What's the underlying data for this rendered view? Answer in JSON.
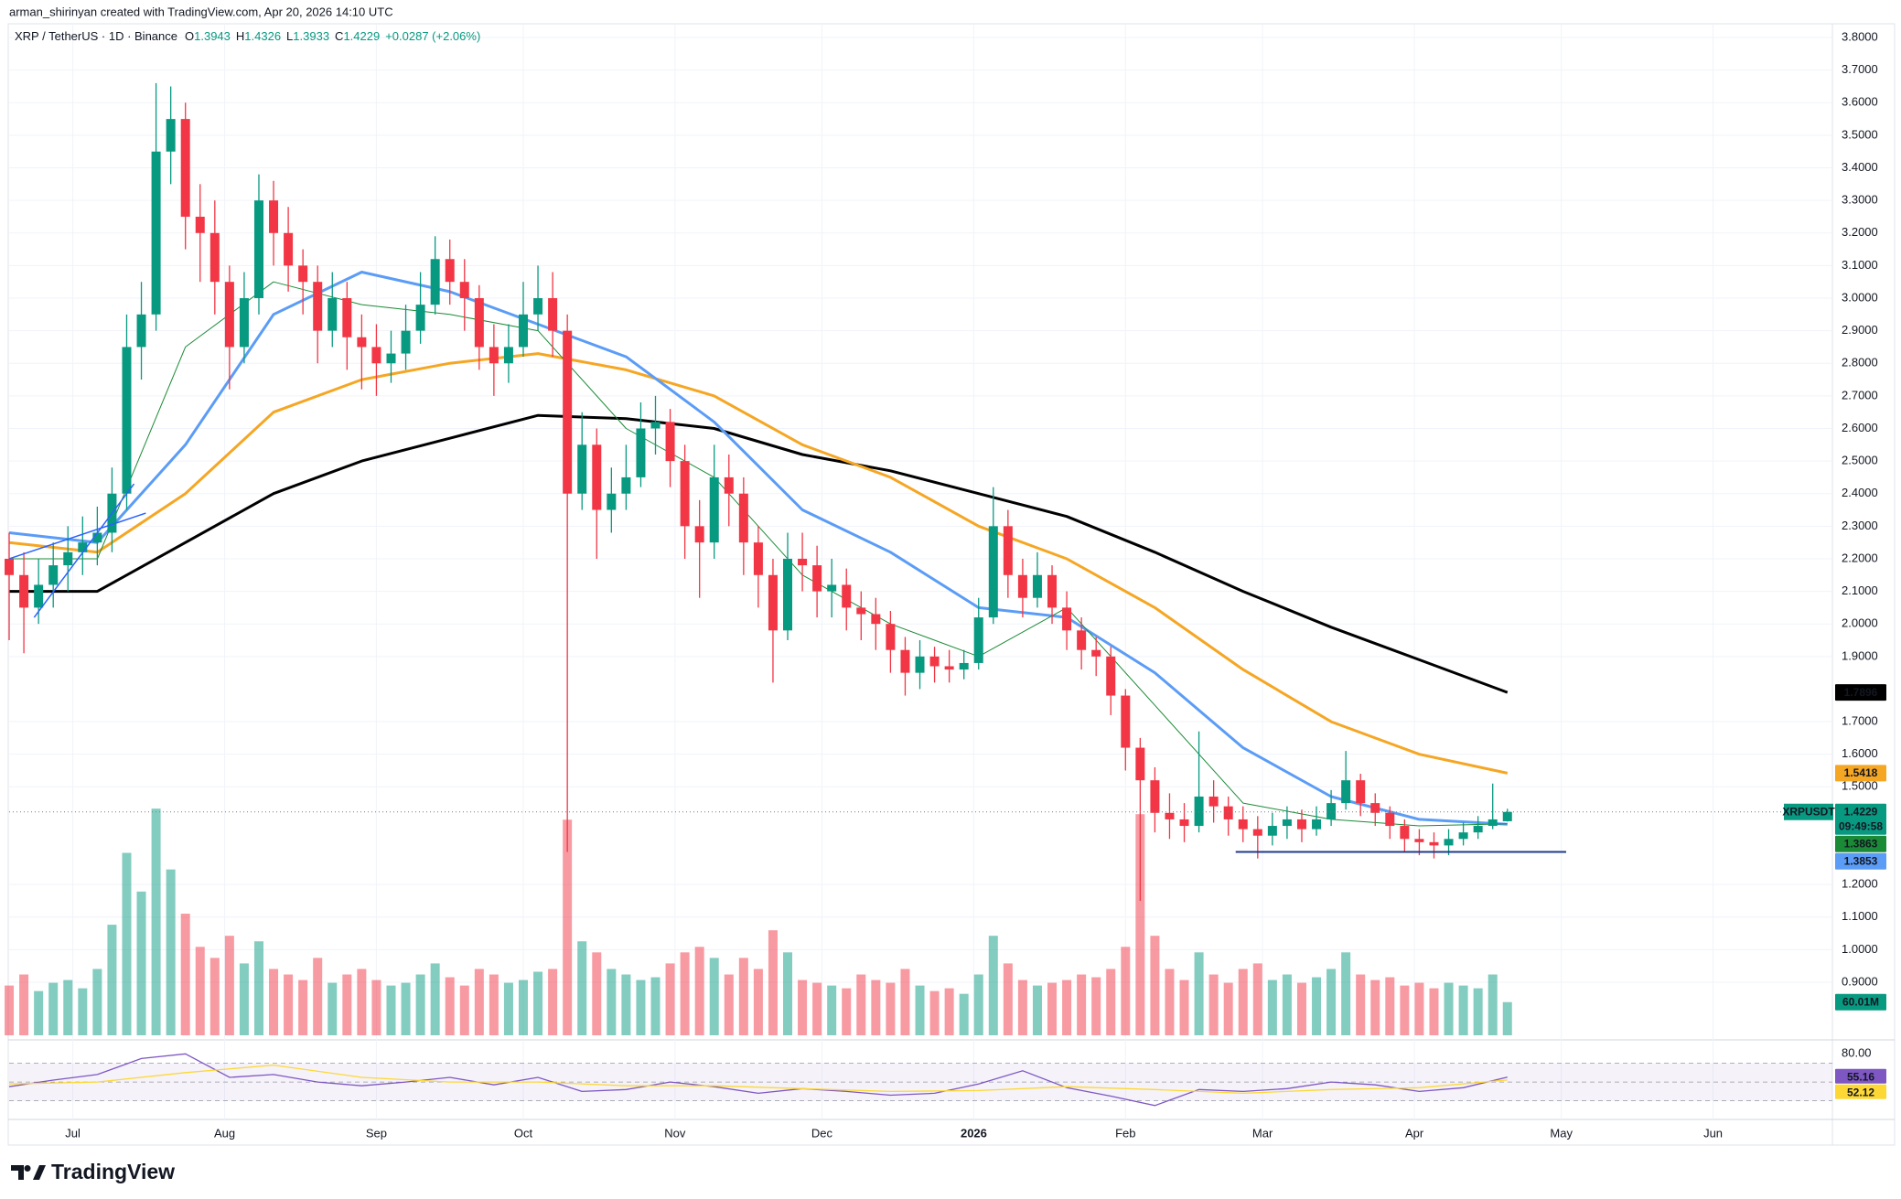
{
  "header": {
    "credit": "arman_shirinyan created with TradingView.com, Apr 20, 2026 14:10 UTC",
    "ohlc": [
      {
        "key": "O",
        "value": 1.3943
      },
      {
        "key": "H",
        "value": 1.4326
      },
      {
        "key": "L",
        "value": 1.3933
      },
      {
        "key": "C",
        "value": 1.4229
      }
    ],
    "change": "+0.0287 (+2.06%)"
  },
  "chart_data": {
    "type": "candlestick",
    "title": "XRP / TetherUS · 1D · Binance",
    "symbol": "XRPUSDT",
    "countdown": "09:49:58",
    "up_color": "#089981",
    "down_color": "#f23645",
    "grid": true,
    "price_line": true,
    "open": [
      2.2,
      2.15,
      2.05,
      2.12,
      2.18,
      2.22,
      2.25,
      2.28,
      2.4,
      2.85,
      2.95,
      3.45,
      3.55,
      3.25,
      3.2,
      3.05,
      2.85,
      3.0,
      3.3,
      3.2,
      3.1,
      3.05,
      2.9,
      3.0,
      2.88,
      2.85,
      2.8,
      2.83,
      2.9,
      2.98,
      3.12,
      3.05,
      3.0,
      2.85,
      2.8,
      2.85,
      2.95,
      3.0,
      2.9,
      2.4,
      2.55,
      2.35,
      2.4,
      2.45,
      2.6,
      2.62,
      2.5,
      2.3,
      2.25,
      2.45,
      2.4,
      2.25,
      2.15,
      1.98,
      2.2,
      2.18,
      2.1,
      2.12,
      2.05,
      2.03,
      2.0,
      1.92,
      1.85,
      1.9,
      1.87,
      1.86,
      1.88,
      2.02,
      2.3,
      2.15,
      2.08,
      2.15,
      2.05,
      1.98,
      1.92,
      1.9,
      1.78,
      1.62,
      1.52,
      1.42,
      1.4,
      1.38,
      1.47,
      1.44,
      1.4,
      1.37,
      1.35,
      1.38,
      1.4,
      1.37,
      1.4,
      1.45,
      1.52,
      1.45,
      1.42,
      1.38,
      1.34,
      1.33,
      1.32,
      1.34,
      1.36,
      1.38,
      1.3943
    ],
    "high": [
      2.28,
      2.22,
      2.2,
      2.25,
      2.3,
      2.33,
      2.36,
      2.48,
      2.95,
      3.05,
      3.66,
      3.65,
      3.6,
      3.35,
      3.3,
      3.1,
      3.08,
      3.38,
      3.36,
      3.28,
      3.15,
      3.1,
      3.08,
      3.05,
      2.95,
      2.92,
      2.9,
      2.98,
      3.08,
      3.19,
      3.18,
      3.12,
      3.04,
      2.92,
      2.92,
      3.05,
      3.1,
      3.08,
      2.95,
      2.65,
      2.6,
      2.48,
      2.55,
      2.68,
      2.7,
      2.66,
      2.55,
      2.38,
      2.55,
      2.52,
      2.45,
      2.3,
      2.2,
      2.28,
      2.28,
      2.24,
      2.2,
      2.17,
      2.1,
      2.08,
      2.04,
      1.96,
      1.95,
      1.93,
      1.92,
      1.92,
      2.08,
      2.42,
      2.35,
      2.2,
      2.22,
      2.18,
      2.1,
      2.02,
      1.96,
      1.93,
      1.8,
      1.65,
      1.56,
      1.48,
      1.45,
      1.67,
      1.52,
      1.47,
      1.44,
      1.41,
      1.42,
      1.44,
      1.43,
      1.44,
      1.49,
      1.61,
      1.54,
      1.48,
      1.44,
      1.4,
      1.37,
      1.36,
      1.37,
      1.39,
      1.41,
      1.51,
      1.4326
    ],
    "low": [
      1.95,
      1.91,
      2.0,
      2.05,
      2.1,
      2.15,
      2.18,
      2.22,
      2.35,
      2.75,
      2.9,
      3.35,
      3.15,
      3.05,
      2.95,
      2.72,
      2.8,
      2.95,
      3.1,
      3.02,
      2.95,
      2.8,
      2.85,
      2.78,
      2.72,
      2.7,
      2.74,
      2.78,
      2.86,
      2.95,
      2.98,
      2.9,
      2.78,
      2.7,
      2.74,
      2.82,
      2.9,
      2.82,
      1.3,
      2.35,
      2.2,
      2.28,
      2.35,
      2.42,
      2.52,
      2.42,
      2.2,
      2.08,
      2.2,
      2.3,
      2.15,
      2.05,
      1.82,
      1.95,
      2.1,
      2.02,
      2.02,
      1.98,
      1.95,
      1.92,
      1.85,
      1.78,
      1.8,
      1.82,
      1.82,
      1.83,
      1.86,
      2.0,
      2.08,
      2.02,
      2.05,
      2.0,
      1.92,
      1.86,
      1.84,
      1.72,
      1.55,
      1.15,
      1.36,
      1.34,
      1.33,
      1.36,
      1.39,
      1.35,
      1.33,
      1.28,
      1.32,
      1.34,
      1.33,
      1.35,
      1.38,
      1.43,
      1.41,
      1.38,
      1.34,
      1.3,
      1.29,
      1.28,
      1.29,
      1.32,
      1.34,
      1.37,
      1.3933
    ],
    "close": [
      2.15,
      2.05,
      2.12,
      2.18,
      2.22,
      2.25,
      2.28,
      2.4,
      2.85,
      2.95,
      3.45,
      3.55,
      3.25,
      3.2,
      3.05,
      2.85,
      3.0,
      3.3,
      3.2,
      3.1,
      3.05,
      2.9,
      3.0,
      2.88,
      2.85,
      2.8,
      2.83,
      2.9,
      2.98,
      3.12,
      3.05,
      3.0,
      2.85,
      2.8,
      2.85,
      2.95,
      3.0,
      2.9,
      2.4,
      2.55,
      2.35,
      2.4,
      2.45,
      2.6,
      2.62,
      2.5,
      2.3,
      2.25,
      2.45,
      2.4,
      2.25,
      2.15,
      1.98,
      2.2,
      2.18,
      2.1,
      2.12,
      2.05,
      2.03,
      2.0,
      1.92,
      1.85,
      1.9,
      1.87,
      1.86,
      1.88,
      2.02,
      2.3,
      2.15,
      2.08,
      2.15,
      2.05,
      1.98,
      1.92,
      1.9,
      1.78,
      1.62,
      1.52,
      1.42,
      1.4,
      1.38,
      1.47,
      1.44,
      1.4,
      1.37,
      1.35,
      1.38,
      1.4,
      1.37,
      1.4,
      1.45,
      1.52,
      1.45,
      1.42,
      1.38,
      1.34,
      1.33,
      1.32,
      1.34,
      1.36,
      1.38,
      1.4,
      1.4229
    ],
    "xlim": [
      -0.5,
      124
    ],
    "xticks": [
      {
        "value": 4.33,
        "label": "Jul"
      },
      {
        "value": 14.67,
        "label": "Aug"
      },
      {
        "value": 25,
        "label": "Sep"
      },
      {
        "value": 35,
        "label": "Oct"
      },
      {
        "value": 45.33,
        "label": "Nov"
      },
      {
        "value": 55.33,
        "label": "Dec"
      },
      {
        "value": 65.67,
        "label": "2026"
      },
      {
        "value": 76,
        "label": "Feb"
      },
      {
        "value": 85.33,
        "label": "Mar"
      },
      {
        "value": 95.67,
        "label": "Apr"
      },
      {
        "value": 105.67,
        "label": "May"
      },
      {
        "value": 116,
        "label": "Jun"
      }
    ],
    "ylim": [
      0.74,
      3.89
    ],
    "yticks": [
      {
        "value": 3.8,
        "label": "3.8000"
      },
      {
        "value": 3.7,
        "label": "3.7000"
      },
      {
        "value": 3.6,
        "label": "3.6000"
      },
      {
        "value": 3.5,
        "label": "3.5000"
      },
      {
        "value": 3.4,
        "label": "3.4000"
      },
      {
        "value": 3.3,
        "label": "3.3000"
      },
      {
        "value": 3.2,
        "label": "3.2000"
      },
      {
        "value": 3.1,
        "label": "3.1000"
      },
      {
        "value": 3.0,
        "label": "3.0000"
      },
      {
        "value": 2.9,
        "label": "2.9000"
      },
      {
        "value": 2.8,
        "label": "2.8000"
      },
      {
        "value": 2.7,
        "label": "2.7000"
      },
      {
        "value": 2.6,
        "label": "2.6000"
      },
      {
        "value": 2.5,
        "label": "2.5000"
      },
      {
        "value": 2.4,
        "label": "2.4000"
      },
      {
        "value": 2.3,
        "label": "2.3000"
      },
      {
        "value": 2.2,
        "label": "2.2000"
      },
      {
        "value": 2.1,
        "label": "2.1000"
      },
      {
        "value": 2.0,
        "label": "2.0000"
      },
      {
        "value": 1.9,
        "label": "1.9000"
      },
      {
        "value": 1.7,
        "label": "1.7000"
      },
      {
        "value": 1.6,
        "label": "1.6000"
      },
      {
        "value": 1.5,
        "label": "1.5000"
      },
      {
        "value": 1.2,
        "label": "1.2000"
      },
      {
        "value": 1.1,
        "label": "1.1000"
      },
      {
        "value": 1.0,
        "label": "1.0000"
      },
      {
        "value": 0.9,
        "label": "0.9000"
      }
    ],
    "series": [
      {
        "color": "#000000",
        "line_width": 3,
        "x": [
          0,
          6,
          12,
          18,
          24,
          30,
          36,
          42,
          48,
          54,
          60,
          66,
          72,
          78,
          84,
          90,
          96,
          102
        ],
        "values": [
          2.1,
          2.1,
          2.25,
          2.4,
          2.5,
          2.57,
          2.64,
          2.63,
          2.6,
          2.52,
          2.47,
          2.4,
          2.33,
          2.22,
          2.1,
          1.99,
          1.89,
          1.7896
        ]
      },
      {
        "color": "#f5a623",
        "line_width": 3,
        "x": [
          0,
          6,
          12,
          18,
          24,
          30,
          36,
          42,
          48,
          54,
          60,
          66,
          72,
          78,
          84,
          90,
          96,
          102
        ],
        "values": [
          2.25,
          2.22,
          2.4,
          2.65,
          2.75,
          2.8,
          2.83,
          2.78,
          2.7,
          2.55,
          2.45,
          2.3,
          2.2,
          2.05,
          1.86,
          1.7,
          1.6,
          1.5418
        ]
      },
      {
        "color": "#5b9cf6",
        "line_width": 3,
        "x": [
          0,
          6,
          12,
          18,
          24,
          30,
          36,
          42,
          48,
          54,
          60,
          66,
          72,
          78,
          84,
          90,
          96,
          102
        ],
        "values": [
          2.28,
          2.25,
          2.55,
          2.95,
          3.08,
          3.02,
          2.92,
          2.82,
          2.62,
          2.35,
          2.22,
          2.05,
          2.02,
          1.85,
          1.62,
          1.47,
          1.4,
          1.3853
        ]
      },
      {
        "color": "#1b8a36",
        "line_width": 1,
        "x": [
          0,
          6,
          12,
          18,
          24,
          30,
          36,
          42,
          48,
          54,
          60,
          66,
          72,
          78,
          84,
          90,
          96,
          102
        ],
        "values": [
          2.2,
          2.2,
          2.85,
          3.05,
          2.98,
          2.95,
          2.9,
          2.6,
          2.45,
          2.15,
          2.0,
          1.9,
          2.05,
          1.75,
          1.45,
          1.4,
          1.38,
          1.3863
        ]
      }
    ],
    "support_line": {
      "value": 1.3,
      "x": [
        83.5,
        106
      ],
      "color": "#1e3a8a"
    },
    "channel": [
      {
        "x": [
          1.7,
          8.5
        ],
        "y": [
          2.02,
          2.43
        ],
        "color": "#2962ff"
      },
      {
        "x": [
          0,
          9.3
        ],
        "y": [
          2.2,
          2.34
        ],
        "color": "#2962ff"
      }
    ],
    "volume": {
      "up_color": "rgba(8,153,129,0.5)",
      "down_color": "rgba(242,54,69,0.5)",
      "ylim": [
        0,
        450
      ],
      "label": "60.01M",
      "values": [
        90,
        110,
        80,
        95,
        100,
        85,
        120,
        200,
        330,
        260,
        410,
        300,
        220,
        160,
        140,
        180,
        130,
        170,
        120,
        110,
        100,
        140,
        95,
        110,
        120,
        100,
        90,
        95,
        110,
        130,
        105,
        90,
        120,
        110,
        95,
        100,
        115,
        120,
        390,
        170,
        150,
        120,
        110,
        100,
        105,
        130,
        150,
        160,
        140,
        110,
        140,
        120,
        190,
        150,
        100,
        95,
        90,
        85,
        110,
        100,
        95,
        120,
        90,
        80,
        85,
        75,
        110,
        180,
        130,
        100,
        90,
        95,
        100,
        110,
        105,
        120,
        160,
        400,
        180,
        120,
        100,
        150,
        110,
        95,
        120,
        130,
        100,
        110,
        95,
        105,
        120,
        150,
        110,
        100,
        105,
        90,
        95,
        85,
        95,
        90,
        85,
        110,
        60.01
      ]
    },
    "rsi": {
      "ylim": [
        18,
        89
      ],
      "yticks": [
        {
          "value": 80,
          "label": "80.00"
        }
      ],
      "bands": [
        70,
        50,
        30
      ],
      "band_color": "#7e57c2",
      "series": [
        {
          "color": "#7e57c2",
          "x": [
            0,
            3,
            6,
            9,
            12,
            15,
            18,
            21,
            24,
            27,
            30,
            33,
            36,
            39,
            42,
            45,
            48,
            51,
            54,
            57,
            60,
            63,
            66,
            69,
            72,
            75,
            78,
            81,
            84,
            87,
            90,
            93,
            96,
            99,
            102
          ],
          "values": [
            45,
            52,
            58,
            75,
            80,
            55,
            58,
            50,
            46,
            50,
            55,
            47,
            55,
            40,
            42,
            50,
            45,
            38,
            43,
            40,
            36,
            38,
            48,
            62,
            44,
            35,
            25,
            42,
            40,
            43,
            50,
            47,
            40,
            44,
            55.16
          ]
        },
        {
          "color": "#fdd835",
          "x": [
            0,
            6,
            12,
            18,
            24,
            30,
            36,
            42,
            48,
            54,
            60,
            66,
            72,
            78,
            84,
            90,
            96,
            102
          ],
          "values": [
            48,
            50,
            60,
            68,
            55,
            50,
            50,
            46,
            46,
            43,
            40,
            41,
            45,
            42,
            38,
            42,
            44,
            52.12
          ]
        }
      ]
    }
  },
  "footer": {
    "brand": "TradingView"
  }
}
